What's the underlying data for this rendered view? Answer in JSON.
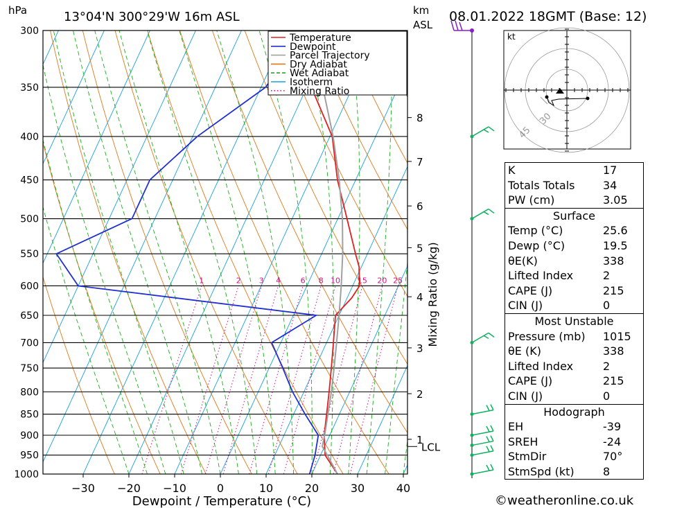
{
  "header": {
    "units_left": "hPa",
    "location": "13°04'N  300°29'W  16m  ASL",
    "units_km": "km",
    "units_asl": "ASL",
    "datetime": "08.01.2022  18GMT  (Base: 12)"
  },
  "footer": {
    "credit": "©weatheronline.co.uk"
  },
  "colors": {
    "temperature": "#e02020",
    "dewpoint": "#2030d0",
    "parcel": "#a0a0a0",
    "dry_adiabat": "#e07818",
    "wet_adiabat": "#18b018",
    "isotherm": "#18a0e0",
    "mixing_ratio": "#d0108a",
    "wind": "#10b060"
  },
  "chart_data": {
    "type": "line",
    "xlabel": "Dewpoint / Temperature (°C)",
    "ylabel_right": "Mixing Ratio (g/kg)",
    "xlim": [
      -40,
      40
    ],
    "ylim": [
      1000,
      300
    ],
    "pressure_ticks": [
      300,
      350,
      400,
      450,
      500,
      550,
      600,
      650,
      700,
      750,
      800,
      850,
      900,
      950,
      1000
    ],
    "temperature_ticks": [
      -30,
      -20,
      -10,
      0,
      10,
      20,
      30,
      40
    ],
    "km_ticks": [
      {
        "label": "8",
        "p": 380
      },
      {
        "label": "7",
        "p": 428
      },
      {
        "label": "6",
        "p": 483
      },
      {
        "label": "5",
        "p": 541
      },
      {
        "label": "4",
        "p": 618
      },
      {
        "label": "3",
        "p": 710
      },
      {
        "label": "2",
        "p": 804
      },
      {
        "label": "1",
        "p": 910
      }
    ],
    "lcl": {
      "label": "LCL",
      "p": 928
    },
    "mixing_ratio_labels": [
      "1",
      "2",
      "3",
      "4",
      "6",
      "8",
      "10",
      "15",
      "20",
      "25"
    ],
    "legend": [
      "Temperature",
      "Dewpoint",
      "Parcel Trajectory",
      "Dry Adiabat",
      "Wet Adiabat",
      "Isotherm",
      "Mixing Ratio"
    ],
    "series": [
      {
        "name": "Temperature",
        "points": [
          [
            1000,
            25.6
          ],
          [
            950,
            21.0
          ],
          [
            900,
            18.8
          ],
          [
            850,
            17.2
          ],
          [
            800,
            15.5
          ],
          [
            750,
            13.6
          ],
          [
            700,
            11.5
          ],
          [
            650,
            9.2
          ],
          [
            620,
            11.0
          ],
          [
            600,
            11.5
          ],
          [
            570,
            9.5
          ],
          [
            550,
            7.4
          ],
          [
            500,
            2.0
          ],
          [
            450,
            -4.0
          ],
          [
            400,
            -9.5
          ],
          [
            350,
            -19.0
          ],
          [
            300,
            -29.0
          ]
        ]
      },
      {
        "name": "Dewpoint",
        "points": [
          [
            1000,
            19.5
          ],
          [
            950,
            18.8
          ],
          [
            900,
            17.5
          ],
          [
            850,
            12.5
          ],
          [
            800,
            7.5
          ],
          [
            750,
            3.0
          ],
          [
            700,
            -2.0
          ],
          [
            650,
            5.0
          ],
          [
            600,
            -50.0
          ],
          [
            550,
            -58.0
          ],
          [
            500,
            -45.0
          ],
          [
            450,
            -45.0
          ],
          [
            400,
            -39.0
          ],
          [
            350,
            -29.0
          ],
          [
            300,
            -26.0
          ]
        ]
      },
      {
        "name": "Parcel Trajectory",
        "points": [
          [
            1000,
            25.6
          ],
          [
            950,
            21.5
          ],
          [
            928,
            19.5
          ],
          [
            900,
            18.9
          ],
          [
            850,
            17.5
          ],
          [
            800,
            16.0
          ],
          [
            750,
            14.2
          ],
          [
            700,
            12.2
          ],
          [
            650,
            10.0
          ],
          [
            600,
            7.5
          ],
          [
            550,
            4.6
          ],
          [
            500,
            1.0
          ],
          [
            450,
            -3.6
          ],
          [
            400,
            -9.3
          ],
          [
            350,
            -16.5
          ],
          [
            300,
            -26.5
          ]
        ]
      }
    ],
    "hodograph": {
      "units": "kt",
      "ring_labels": [
        "30",
        "45"
      ]
    },
    "wind_levels": [
      1000,
      950,
      925,
      900,
      850,
      700,
      500,
      400,
      300
    ]
  },
  "stats": {
    "top": [
      {
        "label": "K",
        "value": "17"
      },
      {
        "label": "Totals Totals",
        "value": "34"
      },
      {
        "label": "PW (cm)",
        "value": "3.05"
      }
    ],
    "surface_title": "Surface",
    "surface": [
      {
        "label": "Temp (°C)",
        "value": "25.6"
      },
      {
        "label": "Dewp (°C)",
        "value": "19.5"
      },
      {
        "label": "θE(K)",
        "value": "338"
      },
      {
        "label": "Lifted Index",
        "value": "2"
      },
      {
        "label": "CAPE (J)",
        "value": "215"
      },
      {
        "label": "CIN (J)",
        "value": "0"
      }
    ],
    "unstable_title": "Most Unstable",
    "unstable": [
      {
        "label": "Pressure (mb)",
        "value": "1015"
      },
      {
        "label": "θE (K)",
        "value": "338"
      },
      {
        "label": "Lifted Index",
        "value": "2"
      },
      {
        "label": "CAPE (J)",
        "value": "215"
      },
      {
        "label": "CIN (J)",
        "value": "0"
      }
    ],
    "hodograph_title": "Hodograph",
    "hodograph": [
      {
        "label": "EH",
        "value": "-39"
      },
      {
        "label": "SREH",
        "value": "-24"
      },
      {
        "label": "StmDir",
        "value": "70°"
      },
      {
        "label": "StmSpd (kt)",
        "value": "8"
      }
    ]
  }
}
